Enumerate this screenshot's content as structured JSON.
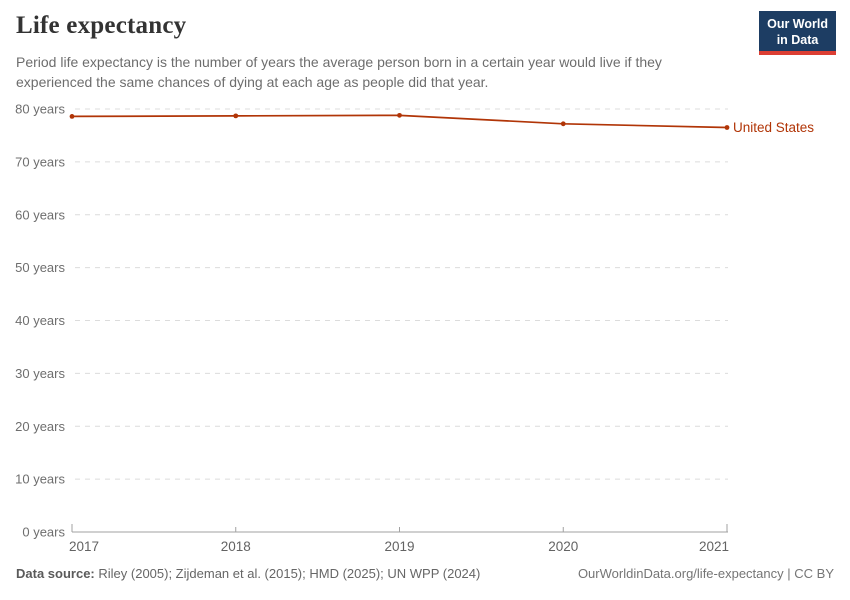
{
  "header": {
    "title": "Life expectancy",
    "subtitle": "Period life expectancy is the number of years the average person born in a certain year would live if they experienced the same chances of dying at each age as people did that year."
  },
  "logo": {
    "line1": "Our World",
    "line2": "in Data"
  },
  "chart_data": {
    "type": "line",
    "title": "Life expectancy",
    "x": [
      2017,
      2018,
      2019,
      2020,
      2021
    ],
    "series": [
      {
        "name": "United States",
        "color": "#b13507",
        "values": [
          78.6,
          78.7,
          78.8,
          77.2,
          76.5
        ]
      }
    ],
    "xlabel": "",
    "ylabel": "",
    "ylim": [
      0,
      80
    ],
    "yticks": [
      0,
      10,
      20,
      30,
      40,
      50,
      60,
      70,
      80
    ],
    "ytick_label_suffix": " years",
    "xticks": [
      2017,
      2018,
      2019,
      2020,
      2021
    ],
    "grid": "horizontal-dashed",
    "legend_position": "line-end-label"
  },
  "colors": {
    "series": "#b13507",
    "grid": "#dcdcdc",
    "axis": "#a1a1a1",
    "ytick_text": "#6e6e6e",
    "xtick_text": "#636363"
  },
  "footer": {
    "source_label": "Data source:",
    "source_text": "Riley (2005); Zijdeman et al. (2015); HMD (2025); UN WPP (2024)",
    "link": "OurWorldinData.org/life-expectancy",
    "separator": "|",
    "license": "CC BY"
  }
}
